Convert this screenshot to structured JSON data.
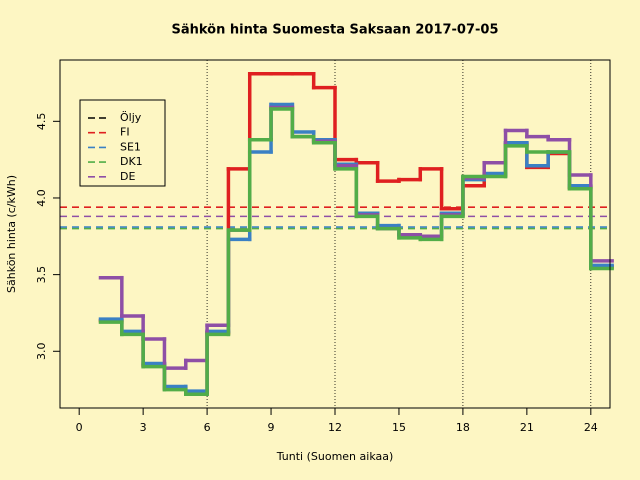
{
  "chart_data": {
    "type": "step",
    "title": "Sähkön hinta Suomesta Saksaan 2017-07-05",
    "x_label": "Tunti (Suomen aikaa)",
    "y_label": "Sähkön hinta (c/kWh)",
    "x": [
      1,
      2,
      3,
      4,
      5,
      6,
      7,
      8,
      9,
      10,
      11,
      12,
      13,
      14,
      15,
      16,
      17,
      18,
      19,
      20,
      21,
      22,
      23,
      24
    ],
    "series": [
      {
        "name": "Öljy",
        "color": "#000000",
        "values": [
          null,
          null,
          null,
          null,
          null,
          null,
          null,
          null,
          null,
          null,
          null,
          null,
          null,
          null,
          null,
          null,
          null,
          null,
          null,
          null,
          null,
          null,
          null,
          null
        ],
        "mean": null
      },
      {
        "name": "FI",
        "color": "#df2020",
        "values": [
          3.2,
          3.12,
          2.91,
          2.76,
          2.73,
          3.12,
          4.19,
          4.81,
          4.81,
          4.81,
          4.72,
          4.25,
          4.23,
          4.11,
          4.12,
          4.19,
          3.93,
          4.08,
          4.15,
          4.35,
          4.2,
          4.29,
          4.07,
          3.55
        ],
        "mean": 3.94
      },
      {
        "name": "SE1",
        "color": "#3a80c4",
        "values": [
          3.21,
          3.13,
          2.92,
          2.77,
          2.74,
          3.13,
          3.73,
          4.3,
          4.61,
          4.43,
          4.38,
          4.22,
          3.9,
          3.82,
          3.76,
          3.75,
          3.9,
          4.12,
          4.16,
          4.36,
          4.21,
          4.3,
          4.08,
          3.56
        ],
        "mean": 3.81
      },
      {
        "name": "DK1",
        "color": "#52ad48",
        "values": [
          3.19,
          3.11,
          2.9,
          2.75,
          2.72,
          3.11,
          3.79,
          4.38,
          4.58,
          4.4,
          4.36,
          4.19,
          3.88,
          3.8,
          3.74,
          3.73,
          3.88,
          4.14,
          4.14,
          4.34,
          4.3,
          4.3,
          4.06,
          3.54
        ],
        "mean": 3.8
      },
      {
        "name": "DE",
        "color": "#8e4fa6",
        "values": [
          3.48,
          3.23,
          3.08,
          2.89,
          2.94,
          3.17,
          3.79,
          4.38,
          4.59,
          4.4,
          4.37,
          4.21,
          3.89,
          3.8,
          3.76,
          3.75,
          3.89,
          4.13,
          4.23,
          4.44,
          4.4,
          4.38,
          4.15,
          3.59
        ],
        "mean": 3.88
      }
    ],
    "xlim": [
      -0.9,
      24.9
    ],
    "ylim": [
      2.63,
      4.9
    ],
    "xticks": [
      0,
      3,
      6,
      9,
      12,
      15,
      18,
      21,
      24
    ],
    "yticks": [
      {
        "value": 3,
        "label": "3.0"
      },
      3.5,
      {
        "value": 4,
        "label": "4.0"
      },
      4.5
    ],
    "vlines": [
      6,
      12,
      18,
      24
    ],
    "legend": "topleft"
  }
}
